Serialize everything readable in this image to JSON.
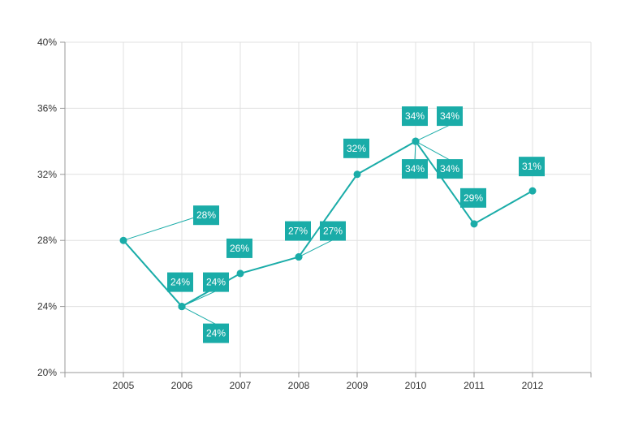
{
  "chart_data": {
    "type": "line",
    "title": "",
    "xlabel": "",
    "ylabel": "",
    "xlim": [
      2004,
      2013
    ],
    "ylim": [
      20,
      40
    ],
    "x_ticks": [
      "2005",
      "2006",
      "2007",
      "2008",
      "2009",
      "2010",
      "2011",
      "2012"
    ],
    "y_ticks": [
      "20%",
      "24%",
      "28%",
      "32%",
      "36%",
      "40%"
    ],
    "grid": true,
    "legend": "none",
    "color": "#1aaca8",
    "points": [
      {
        "x": 2005,
        "y": 28,
        "label": "28%"
      },
      {
        "x": 2006,
        "y": 24,
        "label": "24%"
      },
      {
        "x": 2006,
        "y": 24,
        "label": "24%"
      },
      {
        "x": 2006,
        "y": 24,
        "label": "24%"
      },
      {
        "x": 2007,
        "y": 26,
        "label": "26%"
      },
      {
        "x": 2008,
        "y": 27,
        "label": "27%"
      },
      {
        "x": 2008,
        "y": 27,
        "label": "27%"
      },
      {
        "x": 2009,
        "y": 32,
        "label": "32%"
      },
      {
        "x": 2010,
        "y": 34,
        "label": "34%"
      },
      {
        "x": 2010,
        "y": 34,
        "label": "34%"
      },
      {
        "x": 2010,
        "y": 34,
        "label": "34%"
      },
      {
        "x": 2010,
        "y": 34,
        "label": "34%"
      },
      {
        "x": 2011,
        "y": 29,
        "label": "29%"
      },
      {
        "x": 2012,
        "y": 31,
        "label": "31%"
      }
    ]
  }
}
